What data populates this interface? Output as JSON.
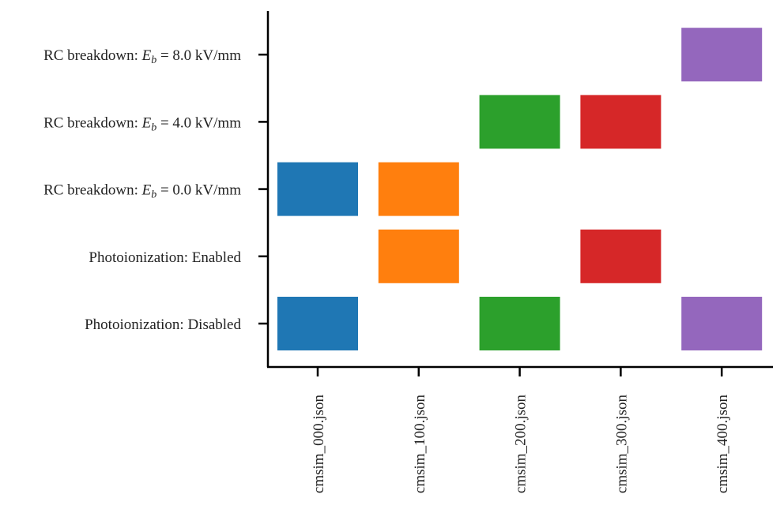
{
  "chart_data": {
    "type": "heatmap",
    "title": "",
    "xlabel": "",
    "ylabel": "",
    "x_labels": [
      "cmsim_000.json",
      "cmsim_100.json",
      "cmsim_200.json",
      "cmsim_300.json",
      "cmsim_400.json"
    ],
    "y_labels": [
      {
        "prefix": "Photoionization: Disabled",
        "var": "",
        "sub": "",
        "suffix": ""
      },
      {
        "prefix": "Photoionization: Enabled",
        "var": "",
        "sub": "",
        "suffix": ""
      },
      {
        "prefix": "RC breakdown: ",
        "var": "E",
        "sub": "b",
        "suffix": " =  0.0 kV/mm"
      },
      {
        "prefix": "RC breakdown: ",
        "var": "E",
        "sub": "b",
        "suffix": " =  4.0 kV/mm"
      },
      {
        "prefix": "RC breakdown: ",
        "var": "E",
        "sub": "b",
        "suffix": " =  8.0 kV/mm"
      }
    ],
    "series_colors": [
      "#1f77b4",
      "#ff7f0e",
      "#2ca02c",
      "#d62728",
      "#9467bd"
    ],
    "cells": [
      {
        "x": 0,
        "y": 0
      },
      {
        "x": 0,
        "y": 2
      },
      {
        "x": 1,
        "y": 1
      },
      {
        "x": 1,
        "y": 2
      },
      {
        "x": 2,
        "y": 0
      },
      {
        "x": 2,
        "y": 3
      },
      {
        "x": 3,
        "y": 1
      },
      {
        "x": 3,
        "y": 3
      },
      {
        "x": 4,
        "y": 0
      },
      {
        "x": 4,
        "y": 4
      }
    ],
    "grid": false
  }
}
